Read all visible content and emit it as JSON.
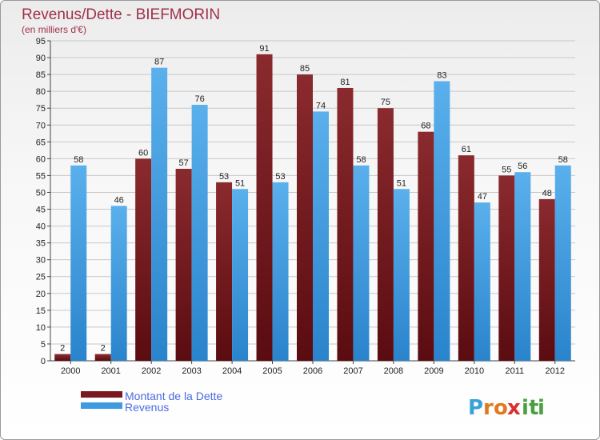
{
  "chart_data": {
    "type": "bar",
    "title": "Revenus/Dette - BIEFMORIN",
    "subtitle": "(en milliers d'€)",
    "categories": [
      "2000",
      "2001",
      "2002",
      "2003",
      "2004",
      "2005",
      "2006",
      "2007",
      "2008",
      "2009",
      "2010",
      "2011",
      "2012"
    ],
    "series": [
      {
        "name": "Montant de la Dette",
        "color": "#7a1a1f",
        "values": [
          2,
          2,
          60,
          57,
          53,
          91,
          85,
          81,
          75,
          68,
          61,
          55,
          48
        ]
      },
      {
        "name": "Revenus",
        "color": "#3f9be0",
        "values": [
          58,
          46,
          87,
          76,
          51,
          53,
          74,
          58,
          51,
          83,
          47,
          56,
          58
        ]
      }
    ],
    "ylim": [
      0,
      95
    ],
    "yticks": [
      0,
      5,
      10,
      15,
      20,
      25,
      30,
      35,
      40,
      45,
      50,
      55,
      60,
      65,
      70,
      75,
      80,
      85,
      90,
      95
    ],
    "grid": true,
    "legend": "bottom-left"
  },
  "logo": {
    "letters": [
      "P",
      "r",
      "o",
      "x",
      "i",
      "t",
      "i"
    ],
    "colors": [
      "#3aa0d8",
      "#e07a1f",
      "#e07a1f",
      "#d92f2f",
      "#4aa040",
      "#4aa040",
      "#4aa040"
    ]
  }
}
